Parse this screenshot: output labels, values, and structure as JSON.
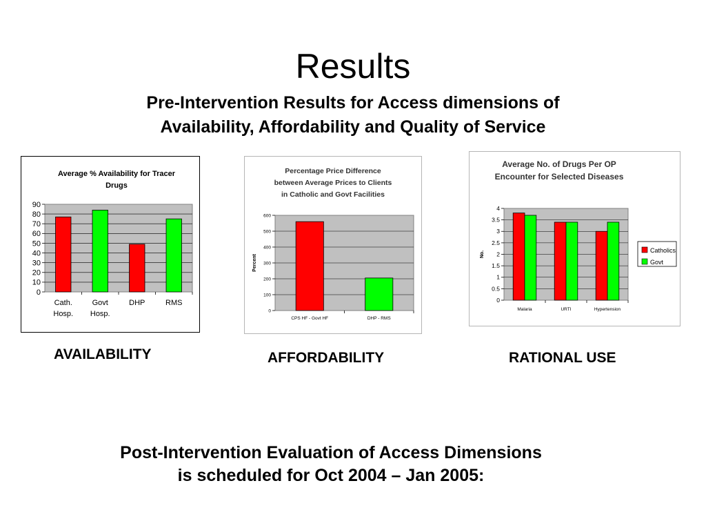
{
  "slide": {
    "title": "Results",
    "subtitle_lines": [
      "Pre-Intervention Results for Access dimensions of",
      "Availability, Affordability and Quality of Service"
    ],
    "captions": [
      "AVAILABILITY",
      "AFFORDABILITY",
      "RATIONAL USE"
    ],
    "footer_lines": [
      "Post-Intervention Evaluation of Access Dimensions",
      "is scheduled for Oct 2004 – Jan 2005:"
    ]
  },
  "chart_data": [
    {
      "type": "bar",
      "title_lines": [
        "Average % Availability for Tracer",
        "Drugs"
      ],
      "categories": [
        [
          "Cath.",
          "Hosp."
        ],
        [
          "Govt",
          "Hosp."
        ],
        [
          "DHP"
        ],
        [
          "RMS"
        ]
      ],
      "values": [
        77,
        84,
        49,
        75
      ],
      "colors": [
        "#ff0000",
        "#00ff00",
        "#ff0000",
        "#00ff00"
      ],
      "ylim": [
        0,
        90
      ],
      "yticks": [
        "0",
        "10",
        "20",
        "30",
        "40",
        "50",
        "60",
        "70",
        "80",
        "90"
      ],
      "ylabel": "",
      "grid": true
    },
    {
      "type": "bar",
      "title_lines": [
        "Percentage Price Difference",
        "between Average Prices to Clients",
        "in Catholic and Govt Facilities"
      ],
      "categories": [
        [
          "CPS HF - Govt HF"
        ],
        [
          "DHP - RMS"
        ]
      ],
      "values": [
        560,
        205
      ],
      "colors": [
        "#ff0000",
        "#00ff00"
      ],
      "ylim": [
        0,
        600
      ],
      "yticks": [
        "0",
        "100",
        "200",
        "300",
        "400",
        "500",
        "600"
      ],
      "ylabel": "Percent",
      "grid": true
    },
    {
      "type": "bar",
      "title_lines": [
        "Average No. of Drugs Per OP",
        "Encounter for Selected Diseases"
      ],
      "categories": [
        "Malaria",
        "URTI",
        "Hypertension"
      ],
      "series": [
        {
          "name": "Catholics",
          "values": [
            3.8,
            3.4,
            3.0
          ],
          "color": "#ff0000"
        },
        {
          "name": "Govt",
          "values": [
            3.7,
            3.4,
            3.4
          ],
          "color": "#00ff00"
        }
      ],
      "ylim": [
        0,
        4
      ],
      "yticks": [
        "0",
        "0.5",
        "1",
        "1.5",
        "2",
        "2.5",
        "3",
        "3.5",
        "4"
      ],
      "ylabel": "No.",
      "legend": "right",
      "grid": true
    }
  ]
}
